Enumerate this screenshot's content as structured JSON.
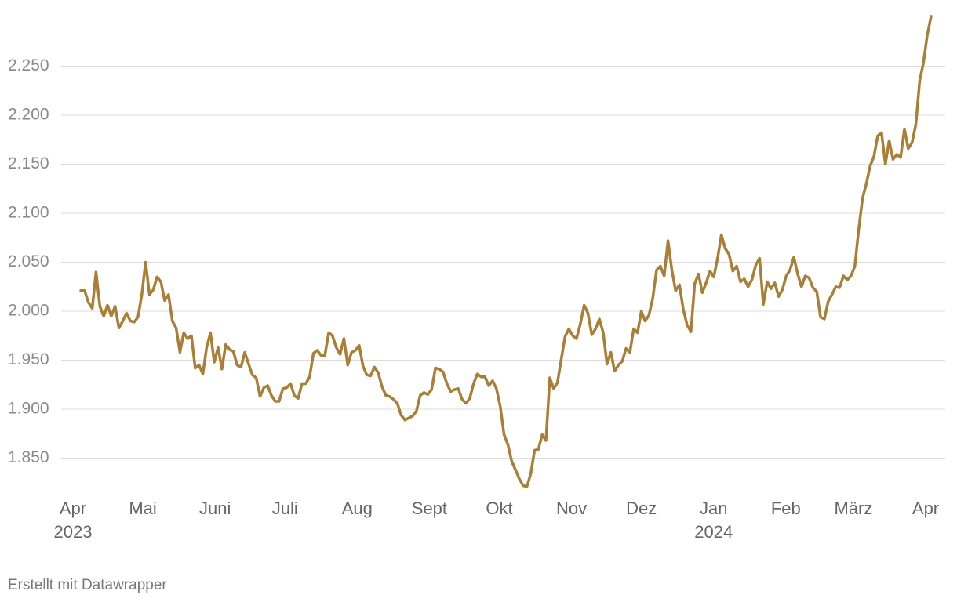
{
  "chart_data": {
    "type": "line",
    "color": "#a97e35",
    "grid": true,
    "ylim": [
      1815,
      2305
    ],
    "yticks": [
      {
        "value": 1850,
        "label": "1.850"
      },
      {
        "value": 1900,
        "label": "1.900"
      },
      {
        "value": 1950,
        "label": "1.950"
      },
      {
        "value": 2000,
        "label": "2.000"
      },
      {
        "value": 2050,
        "label": "2.050"
      },
      {
        "value": 2100,
        "label": "2.100"
      },
      {
        "value": 2150,
        "label": "2.150"
      },
      {
        "value": 2200,
        "label": "2.200"
      },
      {
        "value": 2250,
        "label": "2.250"
      }
    ],
    "xticks": [
      {
        "value": "2023-04",
        "label": "Apr",
        "sublabel": "2023"
      },
      {
        "value": "2023-05",
        "label": "Mai"
      },
      {
        "value": "2023-06",
        "label": "Juni"
      },
      {
        "value": "2023-07",
        "label": "Juli"
      },
      {
        "value": "2023-08",
        "label": "Aug"
      },
      {
        "value": "2023-09",
        "label": "Sept"
      },
      {
        "value": "2023-10",
        "label": "Okt"
      },
      {
        "value": "2023-11",
        "label": "Nov"
      },
      {
        "value": "2023-12",
        "label": "Dez"
      },
      {
        "value": "2024-01",
        "label": "Jan",
        "sublabel": "2024"
      },
      {
        "value": "2024-02",
        "label": "Feb"
      },
      {
        "value": "2024-03",
        "label": "März"
      },
      {
        "value": "2024-04",
        "label": "Apr"
      }
    ],
    "values": [
      2021,
      2021,
      2009,
      2003,
      2040,
      2005,
      1995,
      2006,
      1995,
      2005,
      1983,
      1990,
      1998,
      1990,
      1989,
      1994,
      2017,
      2050,
      2017,
      2022,
      2035,
      2030,
      2011,
      2017,
      1990,
      1983,
      1958,
      1978,
      1972,
      1975,
      1942,
      1945,
      1936,
      1963,
      1978,
      1948,
      1963,
      1941,
      1966,
      1961,
      1959,
      1945,
      1943,
      1958,
      1946,
      1935,
      1932,
      1913,
      1922,
      1924,
      1914,
      1908,
      1908,
      1921,
      1922,
      1926,
      1914,
      1911,
      1926,
      1926,
      1933,
      1957,
      1960,
      1955,
      1955,
      1978,
      1975,
      1963,
      1956,
      1972,
      1945,
      1958,
      1960,
      1965,
      1944,
      1935,
      1934,
      1943,
      1937,
      1923,
      1914,
      1913,
      1910,
      1906,
      1894,
      1889,
      1891,
      1893,
      1898,
      1914,
      1917,
      1915,
      1920,
      1942,
      1941,
      1938,
      1926,
      1918,
      1920,
      1921,
      1910,
      1906,
      1911,
      1926,
      1936,
      1933,
      1933,
      1924,
      1929,
      1921,
      1903,
      1874,
      1864,
      1847,
      1838,
      1829,
      1822,
      1821,
      1834,
      1858,
      1859,
      1874,
      1868,
      1932,
      1921,
      1927,
      1951,
      1974,
      1982,
      1975,
      1972,
      1987,
      2006,
      1998,
      1976,
      1982,
      1992,
      1978,
      1946,
      1958,
      1939,
      1945,
      1949,
      1962,
      1958,
      1982,
      1978,
      2000,
      1990,
      1996,
      2013,
      2042,
      2046,
      2036,
      2072,
      2042,
      2021,
      2027,
      2002,
      1986,
      1979,
      2028,
      2038,
      2019,
      2029,
      2041,
      2035,
      2054,
      2078,
      2064,
      2058,
      2041,
      2046,
      2030,
      2033,
      2025,
      2032,
      2047,
      2054,
      2007,
      2030,
      2023,
      2029,
      2015,
      2022,
      2036,
      2042,
      2055,
      2038,
      2025,
      2036,
      2034,
      2024,
      2020,
      1994,
      1992,
      2010,
      2017,
      2025,
      2024,
      2036,
      2032,
      2036,
      2046,
      2083,
      2115,
      2130,
      2148,
      2158,
      2179,
      2182,
      2150,
      2174,
      2155,
      2160,
      2157,
      2186,
      2166,
      2172,
      2191,
      2235,
      2254,
      2282,
      2301
    ],
    "footer": "Erstellt mit Datawrapper"
  }
}
